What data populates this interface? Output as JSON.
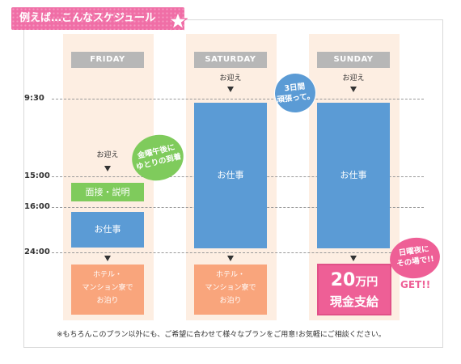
{
  "title": "例えば…こんなスケジュール",
  "times": [
    "9:30",
    "15:00",
    "16:00",
    "24:00"
  ],
  "columns": {
    "friday": {
      "header": "FRIDAY",
      "pickup": "お迎え",
      "interview": "面接・説明",
      "work": "お仕事",
      "hotel": [
        "ホテル・",
        "マンション寮で",
        "お泊り"
      ]
    },
    "saturday": {
      "header": "SATURDAY",
      "pickup": "お迎え",
      "work": "お仕事",
      "hotel": [
        "ホテル・",
        "マンション寮で",
        "お泊り"
      ]
    },
    "sunday": {
      "header": "SUNDAY",
      "pickup": "お迎え",
      "work": "お仕事",
      "pay_amount": "20",
      "pay_unit": "万円",
      "pay_label": "現金支給"
    }
  },
  "bubbles": {
    "friday": [
      "金曜午後に",
      "ゆとりの到着"
    ],
    "saturday": [
      "3日間",
      "頑張って。"
    ],
    "sunday": [
      "日曜夜に",
      "その場で!!"
    ]
  },
  "get_label": "GET!!",
  "footnote": "※もちろんこのプラン以外にも、ご希望に合わせて様々なプランをご用意!お気軽にご相談ください。",
  "colors": {
    "pink": "#f06ea6",
    "blue": "#5b9bd5",
    "green": "#7fcb5c",
    "orange": "#f9a57c",
    "column_bg": "#fdeee2"
  }
}
